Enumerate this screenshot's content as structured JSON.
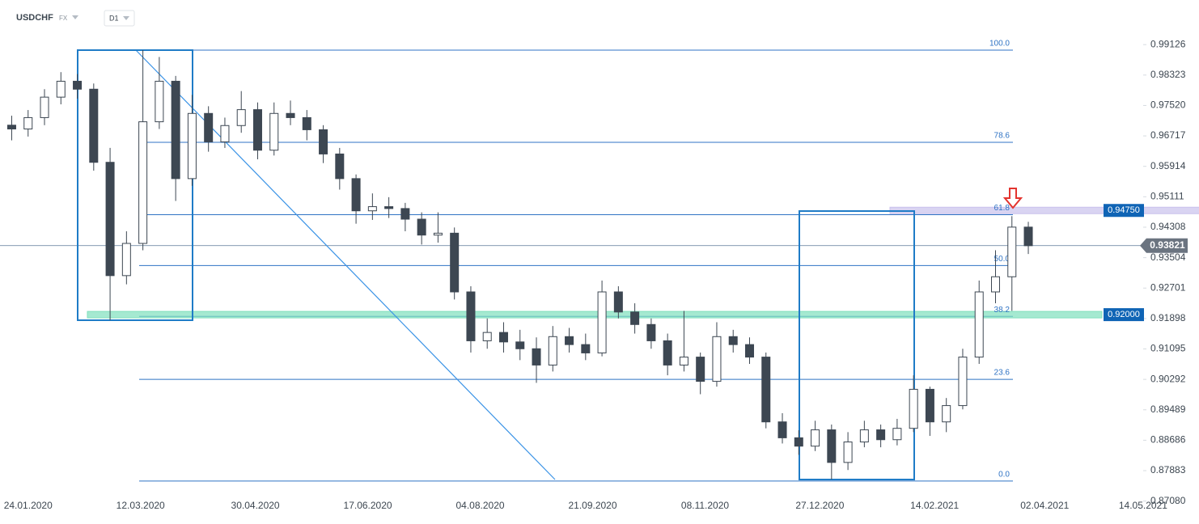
{
  "header": {
    "symbol": "USDCHF",
    "market": "FX",
    "timeframe": "D1"
  },
  "chart_data": {
    "type": "candlestick",
    "x": [
      "17.01.2020",
      "24.01.2020",
      "31.01.2020",
      "07.02.2020",
      "14.02.2020",
      "21.02.2020",
      "28.02.2020",
      "06.03.2020",
      "13.03.2020",
      "20.03.2020",
      "27.03.2020",
      "03.04.2020",
      "10.04.2020",
      "17.04.2020",
      "24.04.2020",
      "01.05.2020",
      "08.05.2020",
      "15.05.2020",
      "22.05.2020",
      "29.05.2020",
      "05.06.2020",
      "12.06.2020",
      "19.06.2020",
      "26.06.2020",
      "03.07.2020",
      "10.07.2020",
      "17.07.2020",
      "24.07.2020",
      "31.07.2020",
      "07.08.2020",
      "14.08.2020",
      "21.08.2020",
      "28.08.2020",
      "04.09.2020",
      "11.09.2020",
      "18.09.2020",
      "25.09.2020",
      "02.10.2020",
      "09.10.2020",
      "16.10.2020",
      "23.10.2020",
      "30.10.2020",
      "06.11.2020",
      "13.11.2020",
      "20.11.2020",
      "27.11.2020",
      "04.12.2020",
      "11.12.2020",
      "18.12.2020",
      "25.12.2020",
      "01.01.2021",
      "08.01.2021",
      "15.01.2021",
      "22.01.2021",
      "29.01.2021",
      "05.02.2021",
      "12.02.2021",
      "19.02.2021",
      "26.02.2021",
      "05.03.2021",
      "12.03.2021",
      "19.03.2021",
      "26.03.2021"
    ],
    "ohlc": [
      [
        0.97,
        0.9725,
        0.966,
        0.969
      ],
      [
        0.969,
        0.974,
        0.967,
        0.972
      ],
      [
        0.972,
        0.9795,
        0.97,
        0.9774
      ],
      [
        0.9774,
        0.984,
        0.9755,
        0.9816
      ],
      [
        0.9816,
        0.9835,
        0.977,
        0.9795
      ],
      [
        0.9795,
        0.981,
        0.958,
        0.9602
      ],
      [
        0.9602,
        0.964,
        0.9185,
        0.9303
      ],
      [
        0.9303,
        0.942,
        0.928,
        0.9388
      ],
      [
        0.9388,
        0.9898,
        0.937,
        0.9709
      ],
      [
        0.9709,
        0.988,
        0.969,
        0.9816
      ],
      [
        0.9816,
        0.983,
        0.95,
        0.9559
      ],
      [
        0.9559,
        0.978,
        0.954,
        0.9731
      ],
      [
        0.9731,
        0.975,
        0.963,
        0.9656
      ],
      [
        0.9656,
        0.972,
        0.964,
        0.9699
      ],
      [
        0.9699,
        0.979,
        0.968,
        0.9741
      ],
      [
        0.9741,
        0.976,
        0.961,
        0.9634
      ],
      [
        0.9634,
        0.976,
        0.962,
        0.9731
      ],
      [
        0.9731,
        0.9765,
        0.97,
        0.972
      ],
      [
        0.972,
        0.974,
        0.966,
        0.9688
      ],
      [
        0.9688,
        0.97,
        0.96,
        0.9624
      ],
      [
        0.9624,
        0.964,
        0.953,
        0.9559
      ],
      [
        0.9559,
        0.957,
        0.944,
        0.9474
      ],
      [
        0.9474,
        0.952,
        0.945,
        0.9485
      ],
      [
        0.9485,
        0.951,
        0.9455,
        0.948
      ],
      [
        0.948,
        0.9495,
        0.942,
        0.9452
      ],
      [
        0.9452,
        0.947,
        0.9385,
        0.941
      ],
      [
        0.941,
        0.947,
        0.939,
        0.9415
      ],
      [
        0.9415,
        0.943,
        0.924,
        0.926
      ],
      [
        0.926,
        0.9275,
        0.91,
        0.9131
      ],
      [
        0.9131,
        0.919,
        0.911,
        0.9153
      ],
      [
        0.9153,
        0.918,
        0.91,
        0.9128
      ],
      [
        0.9128,
        0.916,
        0.908,
        0.911
      ],
      [
        0.911,
        0.914,
        0.902,
        0.9067
      ],
      [
        0.9067,
        0.917,
        0.905,
        0.9142
      ],
      [
        0.9142,
        0.9165,
        0.91,
        0.9121
      ],
      [
        0.9121,
        0.915,
        0.908,
        0.9099
      ],
      [
        0.9099,
        0.929,
        0.909,
        0.926
      ],
      [
        0.926,
        0.9275,
        0.919,
        0.9207
      ],
      [
        0.9207,
        0.923,
        0.915,
        0.9174
      ],
      [
        0.9174,
        0.919,
        0.911,
        0.9131
      ],
      [
        0.9131,
        0.915,
        0.904,
        0.9067
      ],
      [
        0.9067,
        0.921,
        0.905,
        0.9088
      ],
      [
        0.9088,
        0.91,
        0.899,
        0.9024
      ],
      [
        0.9024,
        0.918,
        0.901,
        0.9142
      ],
      [
        0.9142,
        0.916,
        0.91,
        0.9121
      ],
      [
        0.9121,
        0.914,
        0.907,
        0.9088
      ],
      [
        0.9088,
        0.91,
        0.89,
        0.8917
      ],
      [
        0.8917,
        0.894,
        0.886,
        0.8875
      ],
      [
        0.8875,
        0.8895,
        0.883,
        0.8853
      ],
      [
        0.8853,
        0.892,
        0.884,
        0.8896
      ],
      [
        0.8896,
        0.891,
        0.8765,
        0.881
      ],
      [
        0.881,
        0.889,
        0.879,
        0.8864
      ],
      [
        0.8864,
        0.892,
        0.885,
        0.8896
      ],
      [
        0.8896,
        0.891,
        0.885,
        0.887
      ],
      [
        0.887,
        0.8925,
        0.8855,
        0.89
      ],
      [
        0.89,
        0.904,
        0.889,
        0.9003
      ],
      [
        0.9003,
        0.901,
        0.888,
        0.8917
      ],
      [
        0.8917,
        0.898,
        0.889,
        0.896
      ],
      [
        0.896,
        0.911,
        0.895,
        0.9088
      ],
      [
        0.9088,
        0.929,
        0.907,
        0.926
      ],
      [
        0.926,
        0.937,
        0.923,
        0.93
      ],
      [
        0.93,
        0.946,
        0.921,
        0.9431
      ],
      [
        0.9431,
        0.9445,
        0.936,
        0.9382
      ]
    ],
    "up_color": "#ffffff",
    "down_color": "#3d4752",
    "wick_color": "#3d4752",
    "xlim": [
      "12.01.2020",
      "13.05.2021"
    ],
    "xticks": [
      "24.01.2020",
      "12.03.2020",
      "30.04.2020",
      "17.06.2020",
      "04.08.2020",
      "21.09.2020",
      "08.11.2020",
      "27.12.2020",
      "14.02.2021",
      "02.04.2021",
      "14.05.2021"
    ],
    "ylim": [
      0.8703,
      0.9945
    ],
    "yticks": [
      0.99126,
      0.98323,
      {
        "value": 0.9752,
        "label": "0.97520"
      },
      0.96717,
      0.95914,
      0.95111,
      0.94308,
      0.93504,
      0.92701,
      0.91898,
      0.91095,
      0.90292,
      0.89489,
      0.88686,
      0.87883,
      {
        "value": 0.8708,
        "label": "0.87080"
      }
    ],
    "fibonacci": {
      "high": 0.9898,
      "low": 0.8761,
      "color": "#2f73c4",
      "levels": [
        {
          "value": 100,
          "label": "100.0"
        },
        {
          "value": 78.6,
          "label": "78.6"
        },
        {
          "value": 61.8,
          "label": "61.8"
        },
        {
          "value": 50,
          "label": "50.0"
        },
        {
          "value": 38.2,
          "label": "38.2"
        },
        {
          "value": 23.6,
          "label": "23.6"
        },
        {
          "value": 0,
          "label": "0.0"
        }
      ]
    },
    "price_levels": [
      {
        "value": 0.9475,
        "label": "0.94750",
        "color": "#c9c2ec"
      },
      {
        "value": 0.92,
        "label": "0.92000",
        "color": "#7fe0bd"
      }
    ],
    "last_price": 0.93821
  }
}
